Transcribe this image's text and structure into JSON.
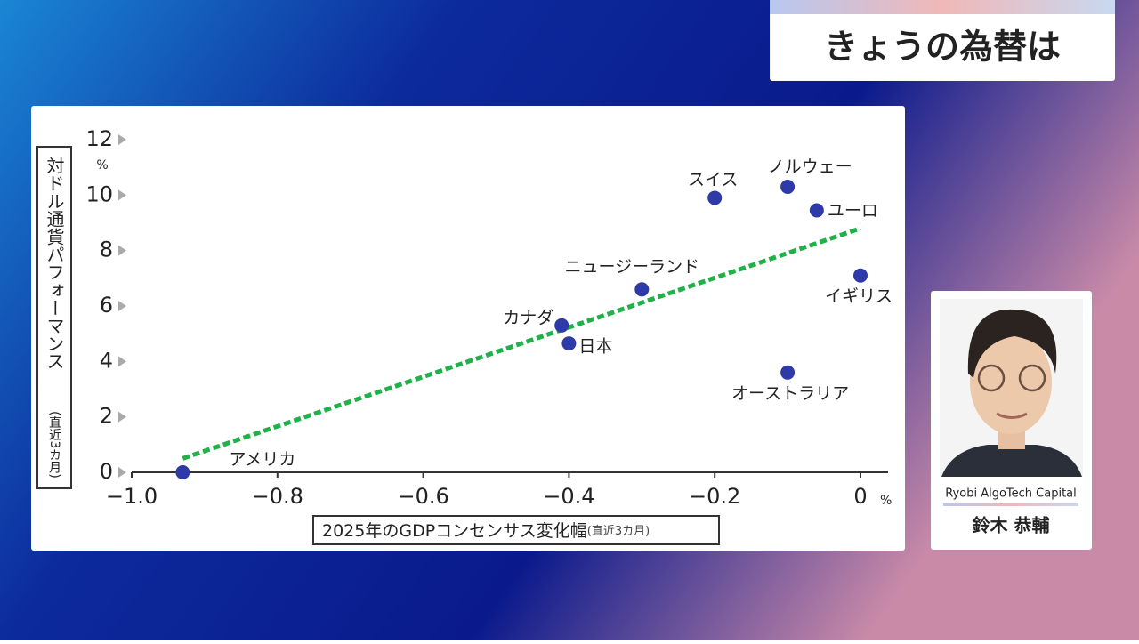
{
  "header": {
    "title": "きょうの為替は"
  },
  "guest": {
    "company": "Ryobi AlgoTech Capital",
    "name": "鈴木 恭輔"
  },
  "chart_data": {
    "type": "scatter",
    "ylabel": "対ドル通貨パフォーマンス",
    "ylabel_note": "(直近3カ月)",
    "y_unit": "%",
    "xlabel": "2025年のGDPコンセンサス変化幅",
    "xlabel_note": "(直近3カ月)",
    "x_unit": "%",
    "xlim": [
      -1.0,
      0
    ],
    "ylim": [
      0,
      12
    ],
    "xticks": [
      {
        "value": -1.0,
        "label": "−1.0"
      },
      {
        "value": -0.8,
        "label": "−0.8"
      },
      {
        "value": -0.6,
        "label": "−0.6"
      },
      {
        "value": -0.4,
        "label": "−0.4"
      },
      {
        "value": -0.2,
        "label": "−0.2"
      },
      0
    ],
    "yticks": [
      0,
      2,
      4,
      6,
      8,
      10,
      12
    ],
    "series": [
      {
        "color": "#2e3aa8",
        "labels": [
          "アメリカ",
          "カナダ",
          "日本",
          "ニュージーランド",
          "スイス",
          "ノルウェー",
          "ユーロ",
          "イギリス",
          "オーストラリア"
        ],
        "x": [
          -0.93,
          -0.41,
          -0.4,
          -0.3,
          -0.2,
          -0.1,
          -0.06,
          0,
          -0.1
        ],
        "values": [
          0,
          5.3,
          4.65,
          6.6,
          9.9,
          10.3,
          9.45,
          7.1,
          3.6
        ]
      }
    ],
    "trendline": {
      "color": "#22b04a",
      "x": [
        -0.93,
        0
      ],
      "values": [
        0.5,
        8.8
      ]
    }
  }
}
